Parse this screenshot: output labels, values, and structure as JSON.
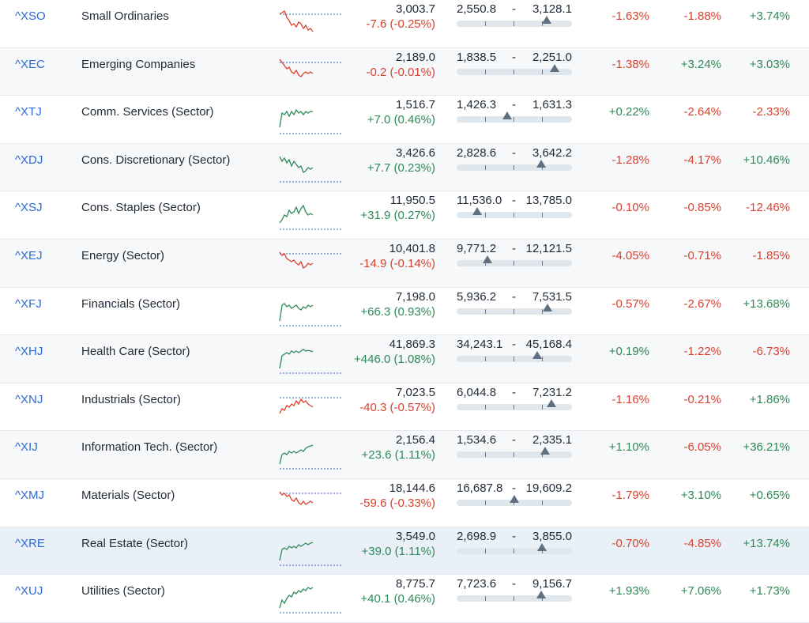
{
  "colors": {
    "positive": "#2f8a57",
    "negative": "#d9412e",
    "symbol": "#2c6bd6",
    "marker": "#5f7080"
  },
  "rows": [
    {
      "symbol": "^XSO",
      "name": "Small Ordinaries",
      "price": "3,003.7",
      "change": "-7.6 (-0.25%)",
      "low": "2,550.8",
      "high": "3,128.1",
      "range_pos": 0.78,
      "p1": "-1.63%",
      "p2": "-1.88%",
      "p3": "+3.74%",
      "spark_color": "negative",
      "spark": [
        0.25,
        0.2,
        0.15,
        0.35,
        0.45,
        0.6,
        0.55,
        0.65,
        0.5,
        0.55,
        0.7,
        0.6,
        0.75,
        0.7,
        0.8
      ]
    },
    {
      "symbol": "^XEC",
      "name": "Emerging Companies",
      "price": "2,189.0",
      "change": "-0.2 (-0.01%)",
      "low": "1,838.5",
      "high": "2,251.0",
      "range_pos": 0.85,
      "p1": "-1.38%",
      "p2": "+3.24%",
      "p3": "+3.03%",
      "spark_color": "negative",
      "spark": [
        0.15,
        0.25,
        0.35,
        0.45,
        0.4,
        0.55,
        0.6,
        0.5,
        0.65,
        0.7,
        0.6,
        0.55,
        0.6,
        0.55,
        0.6
      ]
    },
    {
      "symbol": "^XTJ",
      "name": "Comm. Services (Sector)",
      "price": "1,516.7",
      "change": "+7.0 (0.46%)",
      "low": "1,426.3",
      "high": "1,631.3",
      "range_pos": 0.44,
      "p1": "+0.22%",
      "p2": "-2.64%",
      "p3": "-2.33%",
      "spark_color": "positive",
      "spark": [
        0.8,
        0.35,
        0.4,
        0.3,
        0.45,
        0.3,
        0.4,
        0.25,
        0.35,
        0.3,
        0.4,
        0.3,
        0.35,
        0.3,
        0.3
      ]
    },
    {
      "symbol": "^XDJ",
      "name": "Cons. Discretionary (Sector)",
      "price": "3,426.6",
      "change": "+7.7 (0.23%)",
      "low": "2,828.6",
      "high": "3,642.2",
      "range_pos": 0.73,
      "p1": "-1.28%",
      "p2": "-4.17%",
      "p3": "+10.46%",
      "spark_color": "positive",
      "spark": [
        0.2,
        0.35,
        0.25,
        0.4,
        0.3,
        0.5,
        0.35,
        0.45,
        0.55,
        0.5,
        0.7,
        0.65,
        0.55,
        0.6,
        0.55
      ]
    },
    {
      "symbol": "^XSJ",
      "name": "Cons. Staples (Sector)",
      "price": "11,950.5",
      "change": "+31.9 (0.27%)",
      "low": "11,536.0",
      "high": "13,785.0",
      "range_pos": 0.18,
      "p1": "-0.10%",
      "p2": "-0.85%",
      "p3": "-12.46%",
      "spark_color": "positive",
      "spark": [
        0.8,
        0.7,
        0.55,
        0.6,
        0.4,
        0.5,
        0.45,
        0.3,
        0.5,
        0.35,
        0.25,
        0.45,
        0.55,
        0.5,
        0.55
      ]
    },
    {
      "symbol": "^XEJ",
      "name": "Energy (Sector)",
      "price": "10,401.8",
      "change": "-14.9 (-0.14%)",
      "low": "9,771.2",
      "high": "12,121.5",
      "range_pos": 0.27,
      "p1": "-4.05%",
      "p2": "-0.71%",
      "p3": "-1.85%",
      "spark_color": "negative",
      "spark": [
        0.2,
        0.3,
        0.25,
        0.4,
        0.45,
        0.5,
        0.45,
        0.55,
        0.6,
        0.5,
        0.7,
        0.65,
        0.55,
        0.6,
        0.55
      ]
    },
    {
      "symbol": "^XFJ",
      "name": "Financials (Sector)",
      "price": "7,198.0",
      "change": "+66.3 (0.93%)",
      "low": "5,936.2",
      "high": "7,531.5",
      "range_pos": 0.79,
      "p1": "-0.57%",
      "p2": "-2.67%",
      "p3": "+13.68%",
      "spark_color": "positive",
      "spark": [
        0.85,
        0.35,
        0.3,
        0.4,
        0.35,
        0.45,
        0.4,
        0.35,
        0.45,
        0.5,
        0.4,
        0.45,
        0.35,
        0.4,
        0.35
      ]
    },
    {
      "symbol": "^XHJ",
      "name": "Health Care (Sector)",
      "price": "41,869.3",
      "change": "+446.0 (1.08%)",
      "low": "34,243.1",
      "high": "45,168.4",
      "range_pos": 0.7,
      "p1": "+0.19%",
      "p2": "-1.22%",
      "p3": "-6.73%",
      "spark_color": "positive",
      "spark": [
        0.85,
        0.45,
        0.4,
        0.35,
        0.4,
        0.3,
        0.35,
        0.3,
        0.35,
        0.3,
        0.25,
        0.3,
        0.28,
        0.3,
        0.32
      ]
    },
    {
      "symbol": "^XNJ",
      "name": "Industrials (Sector)",
      "price": "7,023.5",
      "change": "-40.3 (-0.57%)",
      "low": "6,044.8",
      "high": "7,231.2",
      "range_pos": 0.82,
      "p1": "-1.16%",
      "p2": "-0.21%",
      "p3": "+1.86%",
      "spark_color": "negative",
      "spark": [
        0.75,
        0.6,
        0.65,
        0.5,
        0.55,
        0.45,
        0.5,
        0.35,
        0.45,
        0.3,
        0.4,
        0.35,
        0.45,
        0.5,
        0.55
      ]
    },
    {
      "symbol": "^XIJ",
      "name": "Information Tech. (Sector)",
      "price": "2,156.4",
      "change": "+23.6 (1.11%)",
      "low": "1,534.6",
      "high": "2,335.1",
      "range_pos": 0.77,
      "p1": "+1.10%",
      "p2": "-6.05%",
      "p3": "+36.21%",
      "spark_color": "positive",
      "spark": [
        0.85,
        0.55,
        0.5,
        0.55,
        0.45,
        0.5,
        0.45,
        0.5,
        0.45,
        0.4,
        0.45,
        0.35,
        0.3,
        0.28,
        0.25
      ]
    },
    {
      "symbol": "^XMJ",
      "name": "Materials (Sector)",
      "price": "18,144.6",
      "change": "-59.6 (-0.33%)",
      "low": "16,687.8",
      "high": "19,609.2",
      "range_pos": 0.5,
      "p1": "-1.79%",
      "p2": "+3.10%",
      "p3": "+0.65%",
      "spark_color": "negative",
      "spark": [
        0.2,
        0.3,
        0.25,
        0.35,
        0.3,
        0.45,
        0.5,
        0.4,
        0.55,
        0.6,
        0.5,
        0.6,
        0.55,
        0.5,
        0.55
      ]
    },
    {
      "symbol": "^XRE",
      "name": "Real Estate (Sector)",
      "price": "3,549.0",
      "change": "+39.0 (1.11%)",
      "low": "2,698.9",
      "high": "3,855.0",
      "range_pos": 0.74,
      "p1": "-0.70%",
      "p2": "-4.85%",
      "p3": "+13.74%",
      "spark_color": "positive",
      "spark": [
        0.85,
        0.5,
        0.45,
        0.5,
        0.4,
        0.45,
        0.4,
        0.45,
        0.35,
        0.4,
        0.35,
        0.3,
        0.35,
        0.3,
        0.28
      ]
    },
    {
      "symbol": "^XUJ",
      "name": "Utilities (Sector)",
      "price": "8,775.7",
      "change": "+40.1 (0.46%)",
      "low": "7,723.6",
      "high": "9,156.7",
      "range_pos": 0.73,
      "p1": "+1.93%",
      "p2": "+7.06%",
      "p3": "+1.73%",
      "spark_color": "positive",
      "spark": [
        0.85,
        0.6,
        0.7,
        0.55,
        0.45,
        0.5,
        0.35,
        0.4,
        0.3,
        0.35,
        0.25,
        0.3,
        0.2,
        0.25,
        0.2
      ]
    }
  ]
}
